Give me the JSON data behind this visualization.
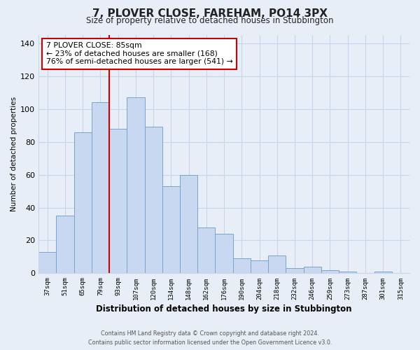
{
  "title": "7, PLOVER CLOSE, FAREHAM, PO14 3PX",
  "subtitle": "Size of property relative to detached houses in Stubbington",
  "xlabel": "Distribution of detached houses by size in Stubbington",
  "ylabel": "Number of detached properties",
  "bar_labels": [
    "37sqm",
    "51sqm",
    "65sqm",
    "79sqm",
    "93sqm",
    "107sqm",
    "120sqm",
    "134sqm",
    "148sqm",
    "162sqm",
    "176sqm",
    "190sqm",
    "204sqm",
    "218sqm",
    "232sqm",
    "246sqm",
    "259sqm",
    "273sqm",
    "287sqm",
    "301sqm",
    "315sqm"
  ],
  "bar_values": [
    13,
    35,
    86,
    104,
    88,
    107,
    89,
    53,
    60,
    28,
    24,
    9,
    8,
    11,
    3,
    4,
    2,
    1,
    0,
    1,
    0
  ],
  "bar_color": "#c8d8f0",
  "bar_edge_color": "#7aa4cc",
  "vline_x": 3.5,
  "vline_color": "#cc0000",
  "annotation_text": "7 PLOVER CLOSE: 85sqm\n← 23% of detached houses are smaller (168)\n76% of semi-detached houses are larger (541) →",
  "annotation_box_color": "#ffffff",
  "annotation_box_edge": "#cc0000",
  "ylim": [
    0,
    145
  ],
  "yticks": [
    0,
    20,
    40,
    60,
    80,
    100,
    120,
    140
  ],
  "grid_color": "#c8d4e8",
  "plot_bg_color": "#e8eef8",
  "fig_bg_color": "#e8eef8",
  "footer1": "Contains HM Land Registry data © Crown copyright and database right 2024.",
  "footer2": "Contains public sector information licensed under the Open Government Licence v3.0."
}
